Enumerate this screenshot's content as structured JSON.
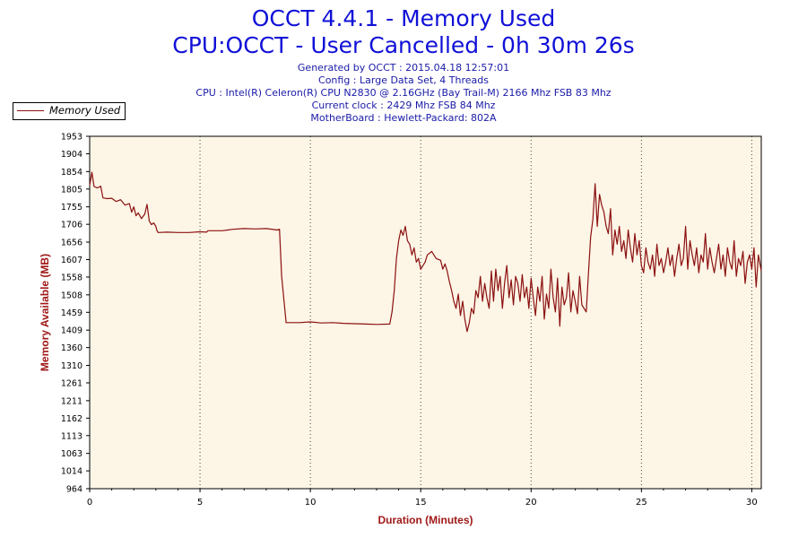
{
  "header": {
    "title": "OCCT 4.4.1 - Memory Used",
    "subtitle": "CPU:OCCT - User Cancelled - 0h 30m 26s",
    "info_lines": [
      "Generated by OCCT : 2015.04.18 12:57:01",
      "Config : Large Data Set, 4 Threads",
      "CPU : Intel(R) Celeron(R) CPU N2830 @ 2.16GHz (Bay Trail-M) 2166 Mhz FSB 83 Mhz",
      "Current clock : 2429 Mhz FSB 84 Mhz",
      "MotherBoard : Hewlett-Packard: 802A"
    ]
  },
  "legend": {
    "label": "Memory Used"
  },
  "chart_data": {
    "type": "line",
    "title": "OCCT 4.4.1 - Memory Used",
    "xlabel": "Duration (Minutes)",
    "ylabel": "Memory Available (MB)",
    "xlim": [
      0,
      30.43
    ],
    "ylim": [
      964,
      1953
    ],
    "x_ticks": [
      0,
      5,
      10,
      15,
      20,
      25,
      30
    ],
    "y_ticks": [
      964,
      1014,
      1063,
      1113,
      1162,
      1211,
      1261,
      1310,
      1360,
      1409,
      1459,
      1508,
      1558,
      1607,
      1656,
      1706,
      1755,
      1805,
      1854,
      1904,
      1953
    ],
    "grid": "vertical dotted",
    "legend_position": "top-left",
    "colors": {
      "series": "#8b1010",
      "plot_bg": "#fdf5e6",
      "title": "#1010d8",
      "axis_label": "#a01818"
    },
    "series": [
      {
        "name": "Memory Used",
        "x": [
          0,
          0.1,
          0.2,
          0.35,
          0.5,
          0.6,
          0.8,
          1.0,
          1.2,
          1.4,
          1.6,
          1.8,
          1.9,
          2.0,
          2.1,
          2.2,
          2.35,
          2.5,
          2.6,
          2.7,
          2.8,
          2.9,
          3.0,
          3.05,
          3.1,
          3.5,
          4.0,
          4.5,
          5.0,
          5.3,
          5.35,
          6.0,
          6.5,
          7.0,
          7.5,
          8.0,
          8.5,
          8.6,
          8.7,
          8.9,
          9.5,
          10.0,
          10.5,
          11.0,
          11.5,
          12.0,
          12.5,
          13.0,
          13.6,
          13.7,
          13.8,
          13.9,
          14.0,
          14.1,
          14.2,
          14.3,
          14.4,
          14.5,
          14.6,
          14.7,
          14.8,
          14.9,
          15.0,
          15.1,
          15.2,
          15.3,
          15.5,
          15.7,
          15.9,
          16.0,
          16.1,
          16.2,
          16.3,
          16.4,
          16.5,
          16.6,
          16.7,
          16.8,
          16.9,
          17.0,
          17.1,
          17.2,
          17.3,
          17.4,
          17.5,
          17.6,
          17.7,
          17.8,
          17.9,
          18.0,
          18.1,
          18.2,
          18.3,
          18.4,
          18.5,
          18.6,
          18.7,
          18.8,
          18.9,
          19.0,
          19.1,
          19.2,
          19.3,
          19.4,
          19.5,
          19.6,
          19.7,
          19.8,
          19.9,
          20.0,
          20.1,
          20.2,
          20.3,
          20.4,
          20.5,
          20.6,
          20.7,
          20.8,
          20.9,
          21.0,
          21.1,
          21.2,
          21.3,
          21.4,
          21.5,
          21.6,
          21.7,
          21.8,
          21.9,
          22.0,
          22.1,
          22.2,
          22.3,
          22.5,
          22.6,
          22.7,
          22.8,
          22.9,
          23.0,
          23.1,
          23.2,
          23.3,
          23.4,
          23.5,
          23.6,
          23.7,
          23.8,
          23.9,
          24.0,
          24.1,
          24.2,
          24.3,
          24.4,
          24.5,
          24.6,
          24.7,
          24.8,
          24.9,
          25.0,
          25.1,
          25.2,
          25.3,
          25.4,
          25.5,
          25.6,
          25.7,
          25.8,
          25.9,
          26.0,
          26.1,
          26.2,
          26.3,
          26.4,
          26.5,
          26.6,
          26.7,
          26.8,
          26.9,
          27.0,
          27.1,
          27.2,
          27.3,
          27.4,
          27.5,
          27.6,
          27.7,
          27.8,
          27.9,
          28.0,
          28.1,
          28.2,
          28.3,
          28.4,
          28.5,
          28.6,
          28.7,
          28.8,
          28.9,
          29.0,
          29.1,
          29.2,
          29.3,
          29.4,
          29.5,
          29.6,
          29.7,
          29.8,
          29.9,
          30.0,
          30.1,
          30.2,
          30.3,
          30.43
        ],
        "y": [
          1815,
          1852,
          1812,
          1808,
          1813,
          1780,
          1778,
          1779,
          1770,
          1775,
          1760,
          1764,
          1740,
          1755,
          1730,
          1738,
          1722,
          1735,
          1762,
          1715,
          1705,
          1710,
          1700,
          1688,
          1683,
          1684,
          1683,
          1683,
          1685,
          1684,
          1688,
          1688,
          1692,
          1694,
          1693,
          1694,
          1690,
          1692,
          1560,
          1430,
          1430,
          1432,
          1429,
          1430,
          1428,
          1427,
          1426,
          1425,
          1426,
          1460,
          1520,
          1610,
          1660,
          1690,
          1675,
          1700,
          1660,
          1650,
          1620,
          1640,
          1600,
          1610,
          1580,
          1590,
          1600,
          1620,
          1630,
          1610,
          1605,
          1580,
          1595,
          1575,
          1545,
          1520,
          1490,
          1470,
          1510,
          1450,
          1490,
          1440,
          1405,
          1430,
          1470,
          1455,
          1520,
          1500,
          1560,
          1490,
          1540,
          1500,
          1470,
          1575,
          1490,
          1580,
          1520,
          1560,
          1470,
          1540,
          1590,
          1500,
          1550,
          1480,
          1560,
          1540,
          1490,
          1565,
          1500,
          1530,
          1470,
          1555,
          1500,
          1450,
          1530,
          1490,
          1560,
          1440,
          1510,
          1470,
          1580,
          1500,
          1460,
          1555,
          1420,
          1530,
          1480,
          1500,
          1570,
          1460,
          1520,
          1490,
          1455,
          1560,
          1480,
          1460,
          1570,
          1670,
          1720,
          1820,
          1700,
          1790,
          1760,
          1740,
          1700,
          1680,
          1750,
          1620,
          1690,
          1650,
          1700,
          1630,
          1660,
          1610,
          1690,
          1640,
          1600,
          1680,
          1620,
          1660,
          1590,
          1570,
          1640,
          1600,
          1580,
          1620,
          1560,
          1650,
          1590,
          1610,
          1570,
          1600,
          1640,
          1590,
          1620,
          1560,
          1610,
          1650,
          1590,
          1610,
          1700,
          1580,
          1660,
          1620,
          1590,
          1640,
          1570,
          1620,
          1600,
          1680,
          1580,
          1640,
          1600,
          1570,
          1610,
          1650,
          1580,
          1620,
          1560,
          1640,
          1600,
          1580,
          1660,
          1560,
          1610,
          1590,
          1630,
          1540,
          1600,
          1620,
          1580,
          1640,
          1530,
          1620,
          1575
        ]
      }
    ]
  }
}
